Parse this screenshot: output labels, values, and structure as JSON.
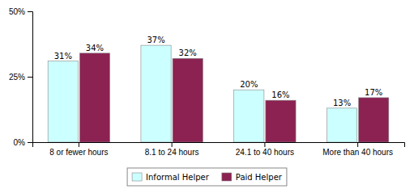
{
  "chart_data": {
    "type": "bar",
    "categories": [
      "8 or fewer hours",
      "8.1 to 24 hours",
      "24.1 to 40 hours",
      "More than 40 hours"
    ],
    "series": [
      {
        "name": "Informal Helper",
        "color": "#ccffff",
        "values": [
          31,
          37,
          20,
          13
        ],
        "value_labels": [
          "31%",
          "37%",
          "20%",
          "13%"
        ]
      },
      {
        "name": "Paid Helper",
        "color": "#8b2252",
        "values": [
          34,
          32,
          16,
          17
        ],
        "value_labels": [
          "34%",
          "32%",
          "16%",
          "17%"
        ]
      }
    ],
    "ylim": [
      0,
      50
    ],
    "yticks": [
      {
        "value": 0,
        "label": "0%"
      },
      {
        "value": 25,
        "label": "25%"
      },
      {
        "value": 50,
        "label": "50%"
      }
    ],
    "grid": false,
    "legend": "bottom",
    "data_labels": true
  }
}
